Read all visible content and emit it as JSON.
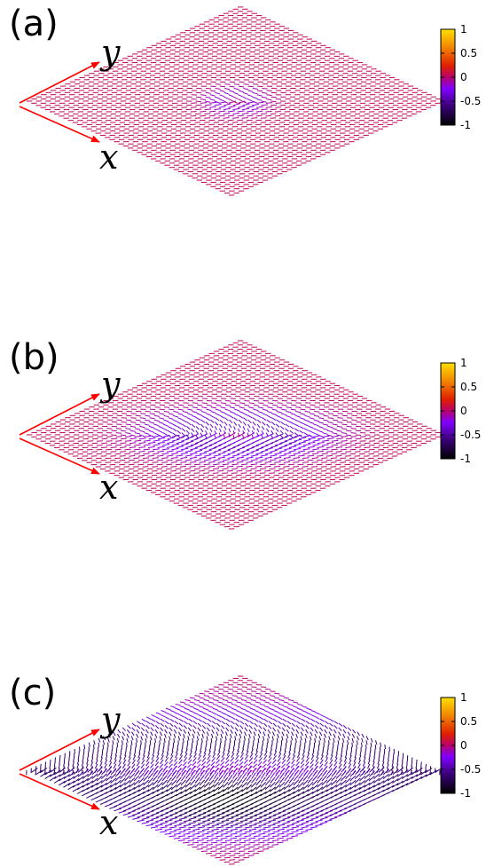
{
  "axis_letters": {
    "x": "x",
    "y": "y"
  },
  "colorbar": {
    "ticks": [
      "1",
      "0.5",
      "0",
      "-0.5",
      "-1"
    ],
    "tick_values": [
      1,
      0.5,
      0,
      -0.5,
      -1
    ],
    "range": [
      -1,
      1
    ],
    "colors": [
      "#000000",
      "#3a0078",
      "#8000ff",
      "#b8006c",
      "#e02000",
      "#f08000",
      "#ffe000"
    ]
  },
  "colors": {
    "axis_arrow": "#ff0000",
    "neutral_arrow": "#b03010"
  },
  "panels": [
    {
      "label": "(a)",
      "core_strength": 0.35,
      "core_spread": 0.16,
      "elongation": 1.0
    },
    {
      "label": "(b)",
      "core_strength": 0.65,
      "core_spread": 0.26,
      "elongation": 1.6
    },
    {
      "label": "(c)",
      "core_strength": 1.0,
      "core_spread": 0.55,
      "elongation": 3.2
    }
  ]
}
